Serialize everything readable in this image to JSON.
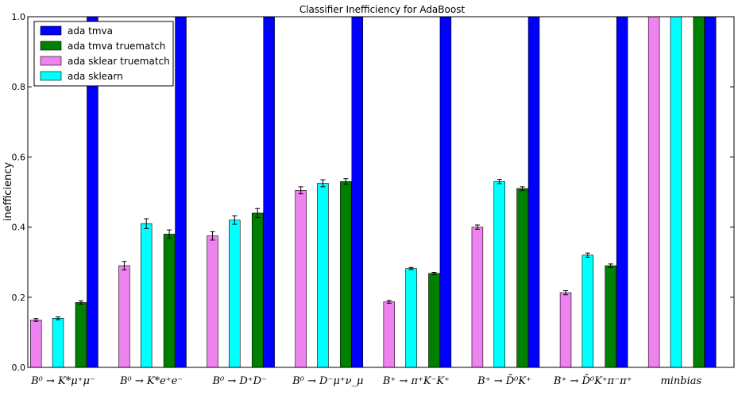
{
  "chart_data": {
    "type": "bar",
    "title": "Classifier Inefficiency for AdaBoost",
    "xlabel": "",
    "ylabel": "inefficiency",
    "ylim": [
      0.0,
      1.0
    ],
    "yticks": [
      "0.0",
      "0.2",
      "0.4",
      "0.6",
      "0.8",
      "1.0"
    ],
    "grid": false,
    "legend_position": "top-left",
    "categories": [
      "B⁰ → K*μ⁺μ⁻",
      "B⁰ → K*e⁺e⁻",
      "B⁰ → D⁺D⁻",
      "B⁰ → D⁻μ⁺ν_μ",
      "B⁺ → π⁺K⁻K⁺",
      "B⁺ → D̄⁰K⁺",
      "B⁺ → D̄⁰K⁺π⁻π⁺",
      "minbias"
    ],
    "series": [
      {
        "name": "ada sklear truematch",
        "color": "#ee82ee",
        "values": [
          0.135,
          0.29,
          0.375,
          0.505,
          0.187,
          0.4,
          0.213,
          1.0
        ],
        "errors": [
          0.004,
          0.012,
          0.012,
          0.01,
          0.004,
          0.006,
          0.006,
          0.0
        ]
      },
      {
        "name": "ada sklearn",
        "color": "#00ffff",
        "values": [
          0.14,
          0.41,
          0.42,
          0.525,
          0.282,
          0.53,
          0.32,
          1.0
        ],
        "errors": [
          0.004,
          0.014,
          0.012,
          0.01,
          0.003,
          0.006,
          0.006,
          0.0
        ]
      },
      {
        "name": "ada tmva truematch",
        "color": "#008000",
        "values": [
          0.185,
          0.38,
          0.44,
          0.53,
          0.268,
          0.51,
          0.29,
          1.0
        ],
        "errors": [
          0.005,
          0.012,
          0.013,
          0.008,
          0.003,
          0.005,
          0.005,
          0.0
        ]
      },
      {
        "name": "ada tmva",
        "color": "#0000ff",
        "values": [
          1.0,
          1.0,
          1.0,
          1.0,
          1.0,
          1.0,
          1.0,
          1.0
        ],
        "errors": [
          0,
          0,
          0,
          0,
          0,
          0,
          0,
          0
        ]
      }
    ],
    "legend_order": [
      "ada tmva",
      "ada tmva truematch",
      "ada sklear truematch",
      "ada sklearn"
    ]
  }
}
